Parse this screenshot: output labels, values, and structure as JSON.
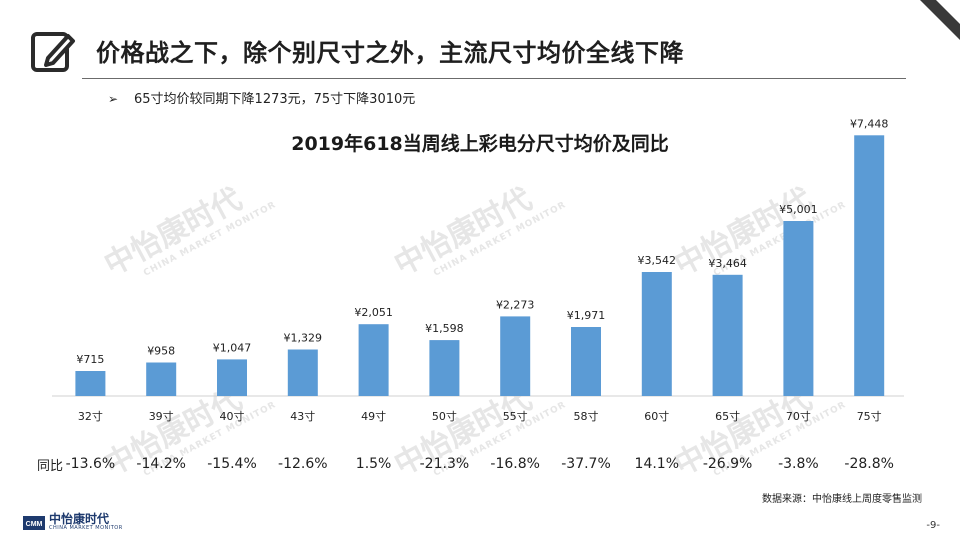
{
  "slide": {
    "title": "价格战之下，除个别尺寸之外，主流尺寸均价全线下降",
    "bullet": "65寸均价较同期下降1273元，75寸下降3010元",
    "yoy_label": "同比",
    "source": "数据来源：中怡康线上周度零售监测",
    "page_number": "-9-",
    "logo_cn": "中怡康时代",
    "logo_en": "CHINA MARKET MONITOR",
    "logo_mark": "CMM",
    "watermark_cn": "中怡康时代",
    "watermark_en": "CHINA MARKET MONITOR",
    "accent_color": "#5b9bd5"
  },
  "chart_data": {
    "type": "bar",
    "title": "2019年618当周线上彩电分尺寸均价及同比",
    "categories": [
      "32寸",
      "39寸",
      "40寸",
      "43寸",
      "49寸",
      "50寸",
      "55寸",
      "58寸",
      "60寸",
      "65寸",
      "70寸",
      "75寸"
    ],
    "values": [
      715,
      958,
      1047,
      1329,
      2051,
      1598,
      2273,
      1971,
      3542,
      3464,
      5001,
      7448
    ],
    "value_labels": [
      "¥715",
      "¥958",
      "¥1,047",
      "¥1,329",
      "¥2,051",
      "¥1,598",
      "¥2,273",
      "¥1,971",
      "¥3,542",
      "¥3,464",
      "¥5,001",
      "¥7,448"
    ],
    "yoy": [
      "-13.6%",
      "-14.2%",
      "-15.4%",
      "-12.6%",
      "1.5%",
      "-21.3%",
      "-16.8%",
      "-37.7%",
      "14.1%",
      "-26.9%",
      "-3.8%",
      "-28.8%"
    ],
    "ylim": [
      0,
      8000
    ],
    "bar_color": "#5b9bd5",
    "grid": false,
    "legend": "none"
  }
}
